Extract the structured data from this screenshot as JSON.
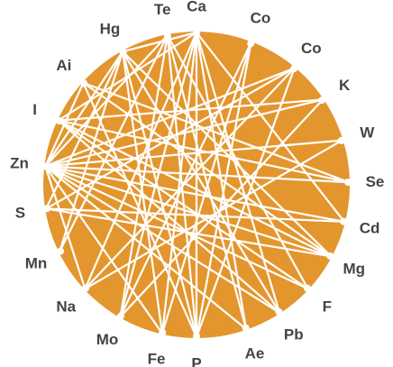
{
  "colors": {
    "disc": "#E3962E",
    "chord": "#FFFFFF",
    "label": "#444444",
    "background": "#FFFFFF"
  },
  "nodes": [
    {
      "id": "ca",
      "label": "Ca"
    },
    {
      "id": "co1",
      "label": "Co"
    },
    {
      "id": "co2",
      "label": "Co"
    },
    {
      "id": "k",
      "label": "K"
    },
    {
      "id": "w",
      "label": "W"
    },
    {
      "id": "se",
      "label": "Se"
    },
    {
      "id": "cd",
      "label": "Cd"
    },
    {
      "id": "mg",
      "label": "Mg"
    },
    {
      "id": "f",
      "label": "F"
    },
    {
      "id": "pb",
      "label": "Pb"
    },
    {
      "id": "ae",
      "label": "Ae"
    },
    {
      "id": "p",
      "label": "P"
    },
    {
      "id": "fe",
      "label": "Fe"
    },
    {
      "id": "mo",
      "label": "Mo"
    },
    {
      "id": "na",
      "label": "Na"
    },
    {
      "id": "mn",
      "label": "Mn"
    },
    {
      "id": "s",
      "label": "S"
    },
    {
      "id": "zn",
      "label": "Zn"
    },
    {
      "id": "i",
      "label": "I"
    },
    {
      "id": "ai",
      "label": "Ai"
    },
    {
      "id": "hg",
      "label": "Hg"
    },
    {
      "id": "te",
      "label": "Te"
    }
  ],
  "links": [
    [
      "ca",
      "fe"
    ],
    [
      "ca",
      "p"
    ],
    [
      "ca",
      "ae"
    ],
    [
      "ca",
      "pb"
    ],
    [
      "ca",
      "mo"
    ],
    [
      "ca",
      "cd"
    ],
    [
      "ca",
      "na"
    ],
    [
      "co1",
      "mo"
    ],
    [
      "co1",
      "fe"
    ],
    [
      "co1",
      "p"
    ],
    [
      "co2",
      "zn"
    ],
    [
      "co2",
      "na"
    ],
    [
      "co2",
      "s"
    ],
    [
      "co2",
      "p"
    ],
    [
      "k",
      "mo"
    ],
    [
      "k",
      "zn"
    ],
    [
      "k",
      "i"
    ],
    [
      "w",
      "zn"
    ],
    [
      "w",
      "na"
    ],
    [
      "se",
      "i"
    ],
    [
      "se",
      "zn"
    ],
    [
      "se",
      "ai"
    ],
    [
      "cd",
      "zn"
    ],
    [
      "cd",
      "s"
    ],
    [
      "mg",
      "ai"
    ],
    [
      "mg",
      "zn"
    ],
    [
      "mg",
      "hg"
    ],
    [
      "mg",
      "i"
    ],
    [
      "mg",
      "s"
    ],
    [
      "f",
      "te"
    ],
    [
      "f",
      "zn"
    ],
    [
      "f",
      "i"
    ],
    [
      "pb",
      "hg"
    ],
    [
      "pb",
      "zn"
    ],
    [
      "pb",
      "i"
    ],
    [
      "ae",
      "te"
    ],
    [
      "ae",
      "zn"
    ],
    [
      "p",
      "te"
    ],
    [
      "p",
      "ai"
    ],
    [
      "p",
      "hg"
    ],
    [
      "fe",
      "hg"
    ],
    [
      "fe",
      "zn"
    ],
    [
      "mo",
      "te"
    ],
    [
      "na",
      "zn"
    ],
    [
      "mn",
      "hg"
    ],
    [
      "mn",
      "te"
    ],
    [
      "s",
      "hg"
    ],
    [
      "zn",
      "hg"
    ],
    [
      "zn",
      "te"
    ],
    [
      "zn",
      "ai"
    ],
    [
      "i",
      "ca"
    ],
    [
      "hg",
      "ca"
    ]
  ]
}
